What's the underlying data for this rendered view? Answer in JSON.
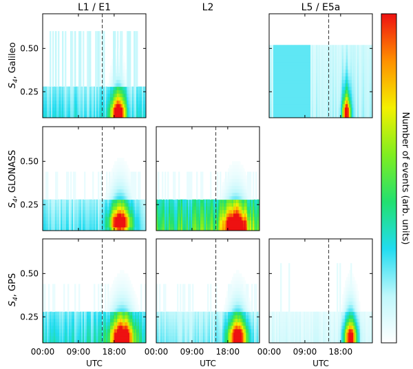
{
  "chart_data": {
    "type": "heatmap",
    "layout": "3x3 panel grid; empty panels at Galileo/L2 and GLONASS/L5 / E5a",
    "columns": [
      "L1 / E1",
      "L2",
      "L5 / E5a"
    ],
    "rows": [
      {
        "constellation": "Galileo",
        "ylabel": "S4, Galileo"
      },
      {
        "constellation": "GLONASS",
        "ylabel": "S4, GLONASS"
      },
      {
        "constellation": "GPS",
        "ylabel": "S4, GPS"
      }
    ],
    "xlabel": "UTC",
    "xticks": [
      "00:00",
      "09:00",
      "18:00"
    ],
    "xlim_hours": [
      0,
      26
    ],
    "xtick_hours": [
      0,
      9,
      18
    ],
    "yticks": [
      0.25,
      0.5
    ],
    "ytick_labels": [
      "0.25",
      "0.50"
    ],
    "ylim": [
      0.1,
      0.7
    ],
    "vline_hour": 15,
    "vline_style": "dashed",
    "colorbar_label": "Number of events (arb. units)",
    "colormap": [
      "#ffffff",
      "#bff7fb",
      "#22dcf0",
      "#22e070",
      "#80ee20",
      "#f4f000",
      "#ff9000",
      "#ee1111"
    ],
    "panels": [
      {
        "row": 0,
        "col": 0,
        "present": true,
        "title": "L1 / E1",
        "peak_hour": 19,
        "peak_s4": 0.15,
        "peak_width_h": 1.7,
        "background_s4_top": 0.27,
        "background_level": 0.35,
        "spikes": "moderate"
      },
      {
        "row": 0,
        "col": 1,
        "present": false
      },
      {
        "row": 0,
        "col": 2,
        "present": true,
        "title": "L5 / E5a",
        "peak_hour": 19.5,
        "peak_s4": 0.15,
        "peak_width_h": 1.0,
        "background_s4_top": 0.52,
        "background_level": 0.2,
        "spikes": "band"
      },
      {
        "row": 1,
        "col": 0,
        "present": true,
        "peak_hour": 19.5,
        "peak_s4": 0.17,
        "peak_width_h": 2.5,
        "background_s4_top": 0.27,
        "background_level": 0.3,
        "spikes": "light"
      },
      {
        "row": 1,
        "col": 1,
        "present": true,
        "title": "L2",
        "peak_hour": 20,
        "peak_s4": 0.15,
        "peak_width_h": 2.8,
        "background_s4_top": 0.27,
        "background_level": 0.62,
        "spikes": "light"
      },
      {
        "row": 1,
        "col": 2,
        "present": false
      },
      {
        "row": 2,
        "col": 0,
        "present": true,
        "peak_hour": 20,
        "peak_s4": 0.16,
        "peak_width_h": 2.8,
        "background_s4_top": 0.27,
        "background_level": 0.4,
        "spikes": "light"
      },
      {
        "row": 2,
        "col": 1,
        "present": true,
        "peak_hour": 20.5,
        "peak_s4": 0.16,
        "peak_width_h": 2.3,
        "background_s4_top": 0.27,
        "background_level": 0.25,
        "spikes": "light"
      },
      {
        "row": 2,
        "col": 2,
        "present": true,
        "peak_hour": 20.5,
        "peak_s4": 0.16,
        "peak_width_h": 1.6,
        "background_s4_top": 0.27,
        "background_level": 0.12,
        "spikes": "sparse"
      }
    ]
  }
}
